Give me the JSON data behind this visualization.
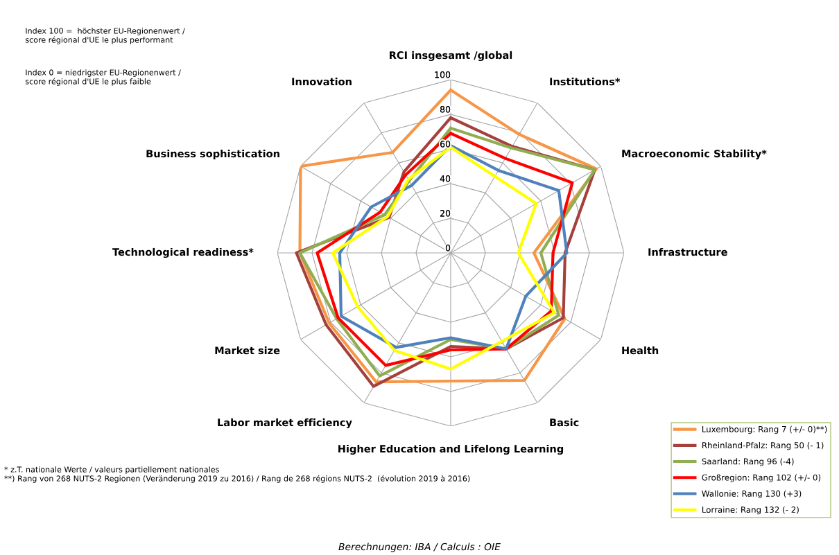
{
  "chart_data": {
    "type": "radar",
    "categories": [
      "RCI insgesamt /global",
      "Institutions*",
      "Macroeconomic Stability*",
      "Infrastructure",
      "Health",
      "Basic",
      "Higher Education and Lifelong Learning",
      "Labor market efficiency",
      "Market size",
      "Technological readiness*",
      "Business sophistication",
      "Innovation"
    ],
    "ylim": [
      0,
      100
    ],
    "yticks": [
      0,
      20,
      40,
      60,
      80,
      100
    ],
    "grid": true,
    "legend": "bottom right",
    "marker": "none",
    "line_style": "solid",
    "series": [
      {
        "name": "Luxembourg: Rang 7 (+/- 0)**)",
        "color": "#f79646",
        "values": [
          94,
          79,
          97,
          48,
          76,
          85,
          74,
          86,
          81,
          87,
          100,
          67
        ]
      },
      {
        "name": "Rheinland-Pfalz: Rang 50 (- 1)",
        "color": "#a5403d",
        "values": [
          78,
          71,
          96,
          66,
          75,
          64,
          54,
          89,
          83,
          89,
          41,
          54
        ]
      },
      {
        "name": "Saarland: Rang 96 (-4)",
        "color": "#8fae52",
        "values": [
          72,
          70,
          96,
          52,
          72,
          64,
          50,
          82,
          76,
          87,
          44,
          48
        ]
      },
      {
        "name": "Großregion: Rang 102 (+/- 0)",
        "color": "#ff0000",
        "values": [
          69,
          63,
          81,
          59,
          67,
          64,
          56,
          75,
          75,
          77,
          47,
          52
        ]
      },
      {
        "name": "Wallonie: Rang 130 (+3)",
        "color": "#4f81bd",
        "values": [
          62,
          55,
          72,
          67,
          50,
          64,
          49,
          63,
          73,
          64,
          53,
          45
        ]
      },
      {
        "name": "Lorraine: Rang 132 (- 2)",
        "color": "#ffff00",
        "values": [
          61,
          51,
          57,
          39,
          69,
          59,
          67,
          65,
          62,
          68,
          42,
          49
        ]
      }
    ],
    "annotations": [
      "Index 100 =  höchster EU-Regionenwert /\nscore régional d'UE le plus performant",
      "Index 0 = niedrigster EU-Regionenwert /\nscore régional d'UE le plus faible",
      "* z.T. nationale Werte / valeurs partiellement nationales\n**) Rang von 268 NUTS-2 Regionen (Veränderung 2019 zu 2016) / Rang de 268 régions NUTS-2  (évolution 2019 à 2016)",
      "Berechnungen: IBA / Calculs : OIE"
    ]
  }
}
